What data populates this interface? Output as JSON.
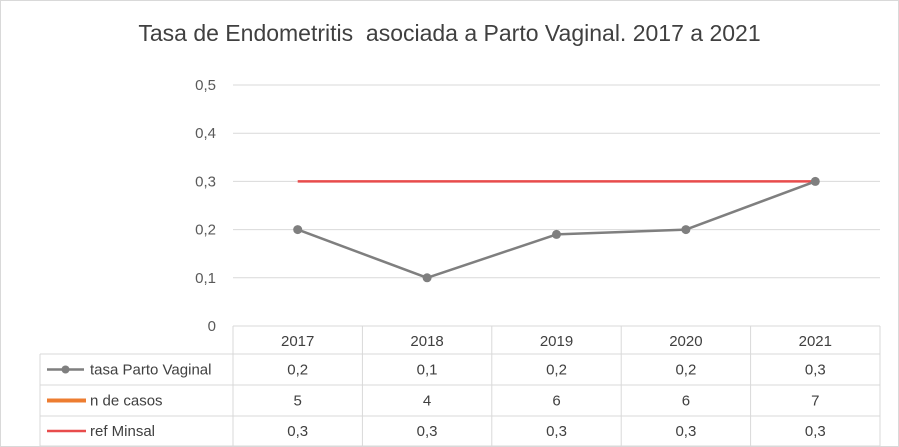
{
  "chart_data": {
    "type": "line",
    "title": "Tasa de Endometritis  asociada a Parto Vaginal. 2017 a 2021",
    "categories": [
      "2017",
      "2018",
      "2019",
      "2020",
      "2021"
    ],
    "ylim": [
      0,
      0.5
    ],
    "y_ticks": [
      "0",
      "0,1",
      "0,2",
      "0,3",
      "0,4",
      "0,5"
    ],
    "y_tick_values": [
      0,
      0.1,
      0.2,
      0.3,
      0.4,
      0.5
    ],
    "grid": true,
    "legend": "data-table",
    "series": [
      {
        "name": "tasa Parto Vaginal",
        "values": [
          0.2,
          0.1,
          0.19,
          0.2,
          0.3
        ],
        "table_values": [
          "0,2",
          "0,1",
          "0,2",
          "0,2",
          "0,3"
        ],
        "color": "#7f7f7f",
        "markers": true,
        "plotted": true
      },
      {
        "name": "n de casos",
        "values": [
          5,
          4,
          6,
          6,
          7
        ],
        "table_values": [
          "5",
          "4",
          "6",
          "6",
          "7"
        ],
        "color": "#ed7d31",
        "markers": false,
        "plotted": false
      },
      {
        "name": "ref Minsal",
        "values": [
          0.3,
          0.3,
          0.3,
          0.3,
          0.3
        ],
        "table_values": [
          "0,3",
          "0,3",
          "0,3",
          "0,3",
          "0,3"
        ],
        "color": "#e84c4c",
        "markers": false,
        "plotted": true
      }
    ]
  }
}
